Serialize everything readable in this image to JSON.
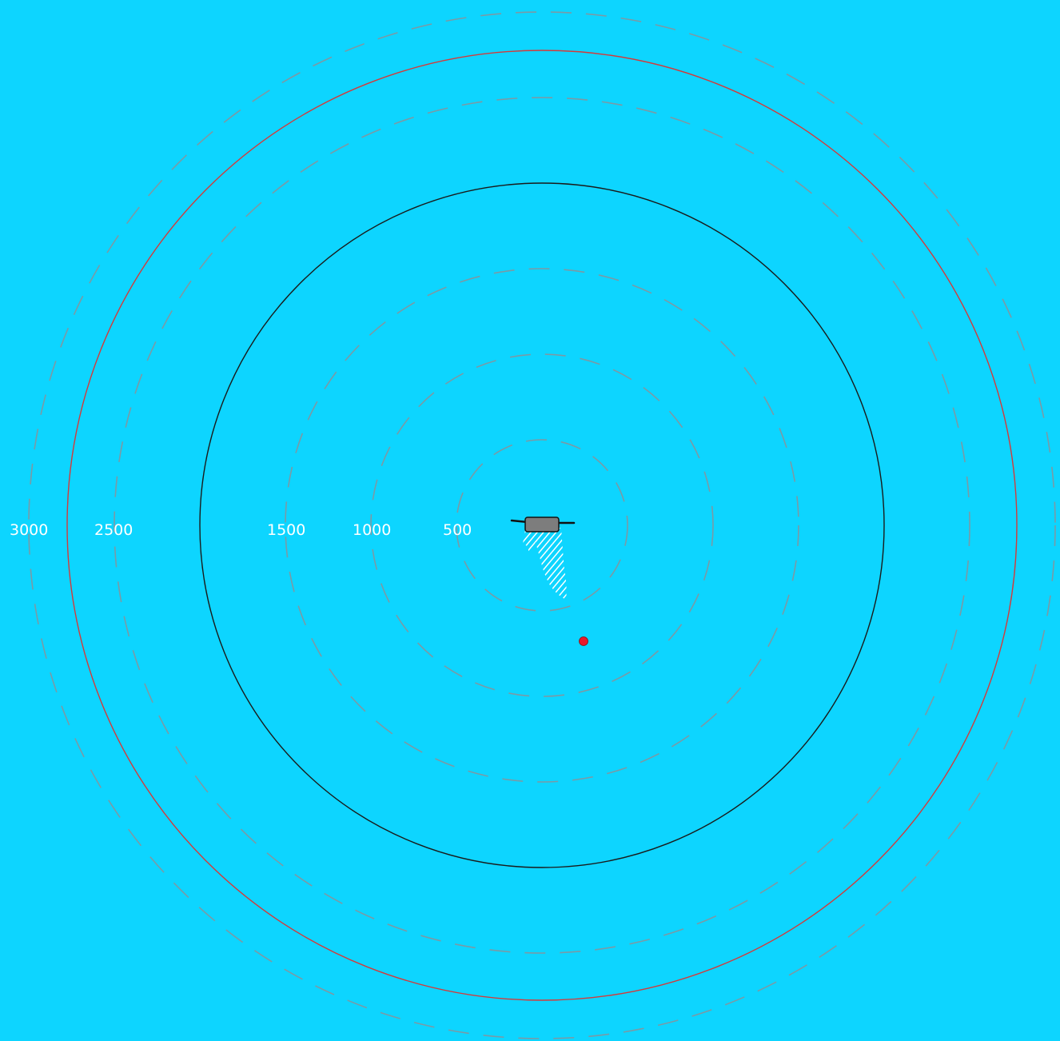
{
  "colors": {
    "background": "#0dd5ff",
    "range_ring_dashed": "#7a9aa6",
    "outer_limit_ring": "#d43a3a",
    "inner_limit_ring": "#1a1a1a",
    "ship_body": "#7d7d7d",
    "wake_pattern": "#ffffff",
    "target_marker": "#e8192c",
    "label_text": "#ffffff"
  },
  "range_rings": {
    "labels": [
      "3000",
      "2500",
      "1500",
      "1000",
      "500"
    ],
    "dashed_values": [
      500,
      1000,
      1500,
      2500,
      3000
    ],
    "inner_limit_value": 2000,
    "outer_limit_value": 2750
  },
  "ship": {
    "icon": "ship-icon",
    "wake_icon": "wake-trail-icon"
  },
  "target": {
    "icon": "target-dot-icon"
  }
}
